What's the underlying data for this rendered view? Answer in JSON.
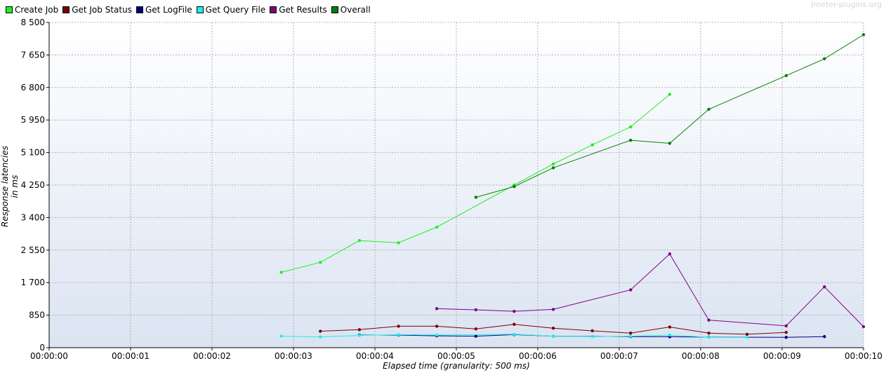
{
  "watermark": "jmeter-plugins.org",
  "chart_data": {
    "type": "line",
    "ylabel": "Response latencies in ms",
    "xlabel": "Elapsed time (granularity: 500 ms)",
    "ylim": [
      0,
      8500
    ],
    "xlim": [
      0,
      10
    ],
    "yticks": [
      0,
      850,
      1700,
      2550,
      3400,
      4250,
      5100,
      5950,
      6800,
      7650,
      8500
    ],
    "ytick_labels": [
      "0",
      "850",
      "1 700",
      "2 550",
      "3 400",
      "4 250",
      "5 100",
      "5 950",
      "6 800",
      "7 650",
      "8 500"
    ],
    "xticks": [
      0,
      1,
      2,
      3,
      4,
      5,
      6,
      7,
      8,
      9,
      10
    ],
    "xtick_labels": [
      "00:00:00",
      "00:00:01",
      "00:00:02",
      "00:00:03",
      "00:00:04",
      "00:00:05",
      "00:00:06",
      "00:00:07",
      "00:00:08",
      "00:00:09",
      "00:00:10"
    ],
    "grid": true,
    "legend_position": "top-left",
    "series": [
      {
        "name": "Create Job",
        "color": "#22ee22",
        "points": [
          [
            2.85,
            1970
          ],
          [
            3.33,
            2230
          ],
          [
            3.81,
            2800
          ],
          [
            4.29,
            2740
          ],
          [
            4.76,
            3150
          ],
          [
            5.71,
            4250
          ],
          [
            6.19,
            4800
          ],
          [
            6.67,
            5300
          ],
          [
            7.14,
            5770
          ],
          [
            7.62,
            6620
          ]
        ]
      },
      {
        "name": "Get Job Status",
        "color": "#7b0000",
        "points": [
          [
            3.33,
            430
          ],
          [
            3.81,
            470
          ],
          [
            4.29,
            560
          ],
          [
            4.76,
            560
          ],
          [
            5.24,
            490
          ],
          [
            5.71,
            610
          ],
          [
            6.19,
            510
          ],
          [
            6.67,
            440
          ],
          [
            7.14,
            380
          ],
          [
            7.62,
            540
          ],
          [
            8.1,
            380
          ],
          [
            8.57,
            350
          ],
          [
            9.05,
            400
          ]
        ]
      },
      {
        "name": "Get LogFile",
        "color": "#000080",
        "points": [
          [
            3.81,
            330
          ],
          [
            4.29,
            330
          ],
          [
            4.76,
            310
          ],
          [
            5.24,
            300
          ],
          [
            5.71,
            340
          ],
          [
            6.19,
            300
          ],
          [
            7.14,
            290
          ],
          [
            7.62,
            285
          ],
          [
            8.1,
            275
          ],
          [
            9.05,
            270
          ],
          [
            9.52,
            290
          ]
        ]
      },
      {
        "name": "Get Query File",
        "color": "#22eeee",
        "points": [
          [
            2.85,
            300
          ],
          [
            3.33,
            280
          ],
          [
            3.81,
            320
          ],
          [
            4.29,
            340
          ],
          [
            4.76,
            330
          ],
          [
            5.71,
            350
          ],
          [
            6.19,
            300
          ],
          [
            6.67,
            290
          ],
          [
            7.14,
            300
          ],
          [
            7.62,
            330
          ],
          [
            8.1,
            270
          ],
          [
            8.57,
            270
          ]
        ]
      },
      {
        "name": "Get Results",
        "color": "#800080",
        "points": [
          [
            4.76,
            1020
          ],
          [
            5.24,
            990
          ],
          [
            5.71,
            950
          ],
          [
            6.19,
            1000
          ],
          [
            7.14,
            1510
          ],
          [
            7.62,
            2450
          ],
          [
            8.1,
            720
          ],
          [
            9.05,
            570
          ],
          [
            9.52,
            1590
          ],
          [
            10.0,
            550
          ]
        ]
      },
      {
        "name": "Overall",
        "color": "#008000",
        "points": [
          [
            5.24,
            3930
          ],
          [
            5.71,
            4210
          ],
          [
            6.19,
            4700
          ],
          [
            7.14,
            5420
          ],
          [
            7.62,
            5340
          ],
          [
            8.1,
            6230
          ],
          [
            9.05,
            7110
          ],
          [
            9.52,
            7550
          ],
          [
            10.0,
            8180
          ]
        ]
      }
    ]
  }
}
